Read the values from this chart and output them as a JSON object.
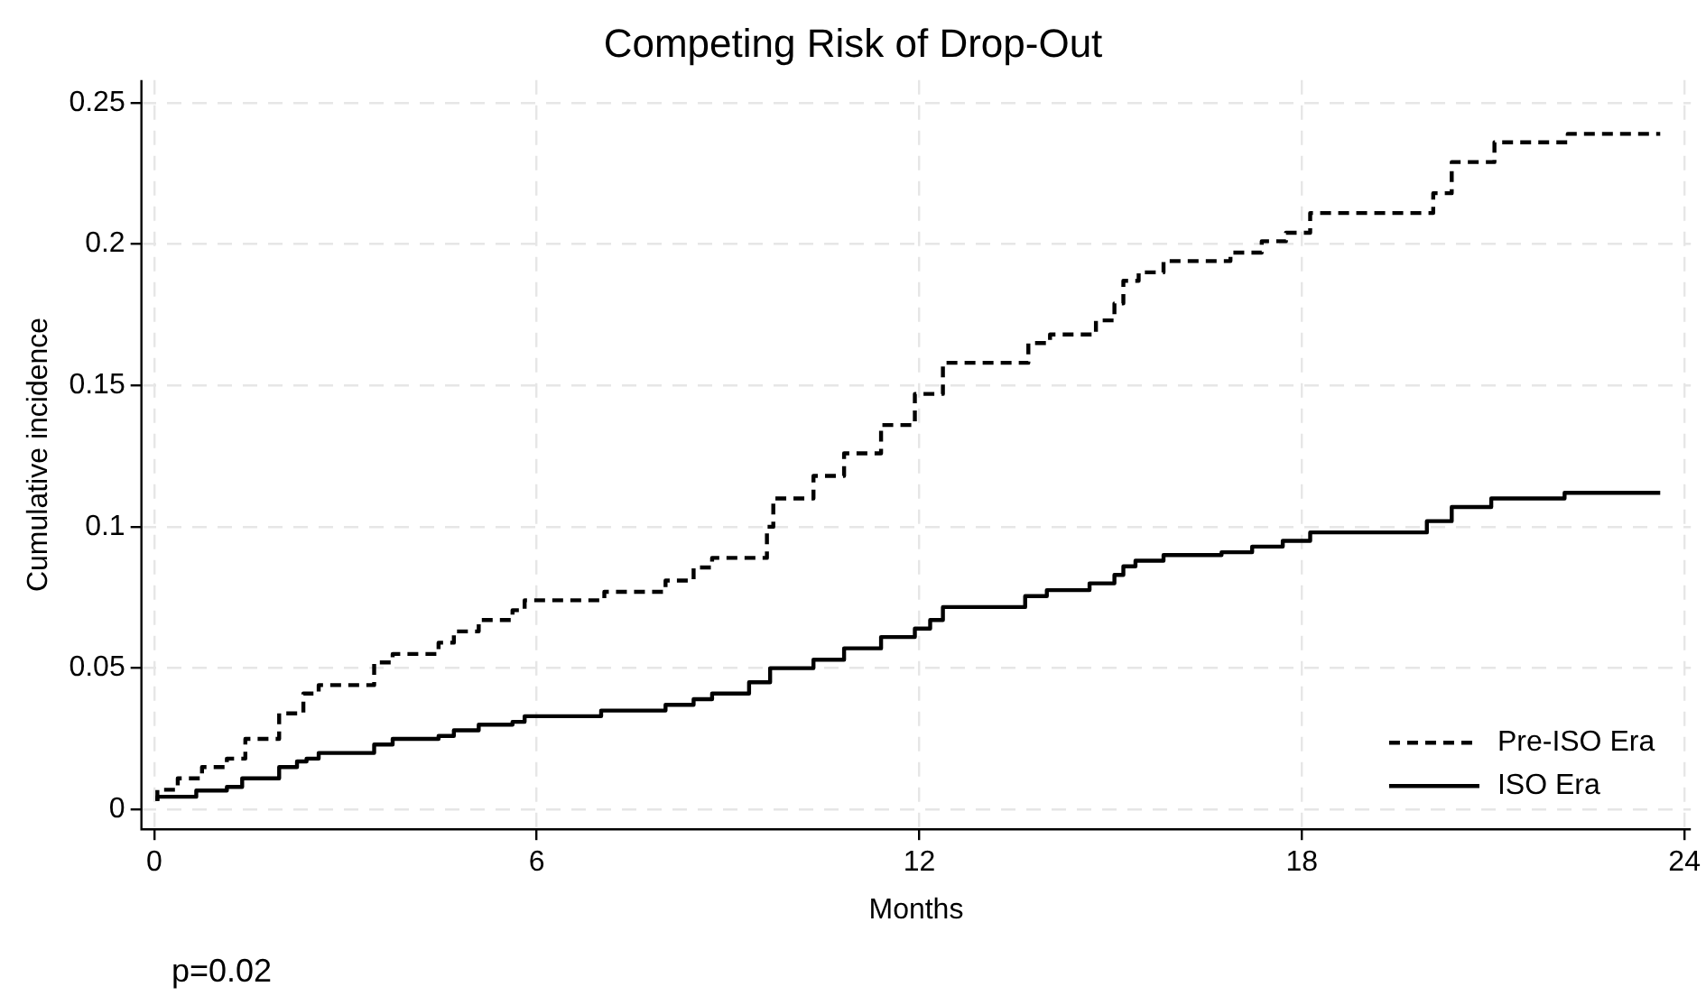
{
  "chart_data": {
    "type": "step",
    "title": "Competing Risk of Drop-Out",
    "xlabel": "Months",
    "ylabel": "Cumulative incidence",
    "annotations": [
      "p=0.02"
    ],
    "xlim": [
      -0.2,
      24.1
    ],
    "xticks": [
      0,
      6,
      12,
      18,
      24
    ],
    "ylim": [
      -0.007,
      0.258
    ],
    "yticks": [
      0,
      0.05,
      0.1,
      0.15,
      0.2,
      0.25
    ],
    "grid": true,
    "legend": "bottom right",
    "marker": "none",
    "series": [
      {
        "name": "Pre-ISO Era",
        "color": "#000000",
        "line_style": "dashed",
        "x": [
          0.05,
          0.37,
          0.75,
          1.14,
          1.43,
          1.96,
          2.34,
          2.58,
          3.45,
          3.74,
          4.46,
          4.7,
          5.09,
          5.62,
          5.81,
          7.06,
          8.02,
          8.46,
          8.75,
          9.61,
          9.71,
          10.34,
          10.82,
          11.4,
          11.93,
          12.37,
          13.71,
          14.05,
          14.77,
          15.06,
          15.2,
          15.44,
          15.83,
          16.88,
          17.37,
          17.75,
          18.13,
          20.06,
          20.35,
          21.02,
          22.17,
          23.23,
          23.62
        ],
        "values": [
          0.003,
          0.007,
          0.011,
          0.015,
          0.018,
          0.025,
          0.034,
          0.041,
          0.044,
          0.052,
          0.055,
          0.059,
          0.063,
          0.067,
          0.0705,
          0.074,
          0.077,
          0.081,
          0.0856,
          0.089,
          0.1,
          0.11,
          0.118,
          0.126,
          0.136,
          0.147,
          0.158,
          0.165,
          0.168,
          0.173,
          0.179,
          0.187,
          0.19,
          0.194,
          0.197,
          0.201,
          0.204,
          0.211,
          0.218,
          0.229,
          0.236,
          0.239,
          0.239
        ]
      },
      {
        "name": "ISO Era",
        "color": "#000000",
        "line_style": "solid",
        "x": [
          0.05,
          0.66,
          1.14,
          1.38,
          1.96,
          2.24,
          2.39,
          2.58,
          3.45,
          3.74,
          4.46,
          4.7,
          5.09,
          5.62,
          5.81,
          7.01,
          8.02,
          8.46,
          8.75,
          9.33,
          9.66,
          10.34,
          10.82,
          11.4,
          11.93,
          12.17,
          12.37,
          13.66,
          14.0,
          14.67,
          15.06,
          15.2,
          15.39,
          15.83,
          16.74,
          17.22,
          17.7,
          18.13,
          19.96,
          20.35,
          20.97,
          22.12,
          23.18,
          23.62
        ],
        "values": [
          0.003,
          0.0045,
          0.0067,
          0.008,
          0.011,
          0.015,
          0.017,
          0.018,
          0.02,
          0.023,
          0.025,
          0.026,
          0.028,
          0.03,
          0.031,
          0.033,
          0.035,
          0.037,
          0.039,
          0.041,
          0.045,
          0.05,
          0.053,
          0.057,
          0.061,
          0.064,
          0.067,
          0.0716,
          0.0755,
          0.0776,
          0.08,
          0.083,
          0.086,
          0.088,
          0.09,
          0.091,
          0.093,
          0.095,
          0.098,
          0.102,
          0.107,
          0.11,
          0.112,
          0.112
        ]
      }
    ]
  }
}
